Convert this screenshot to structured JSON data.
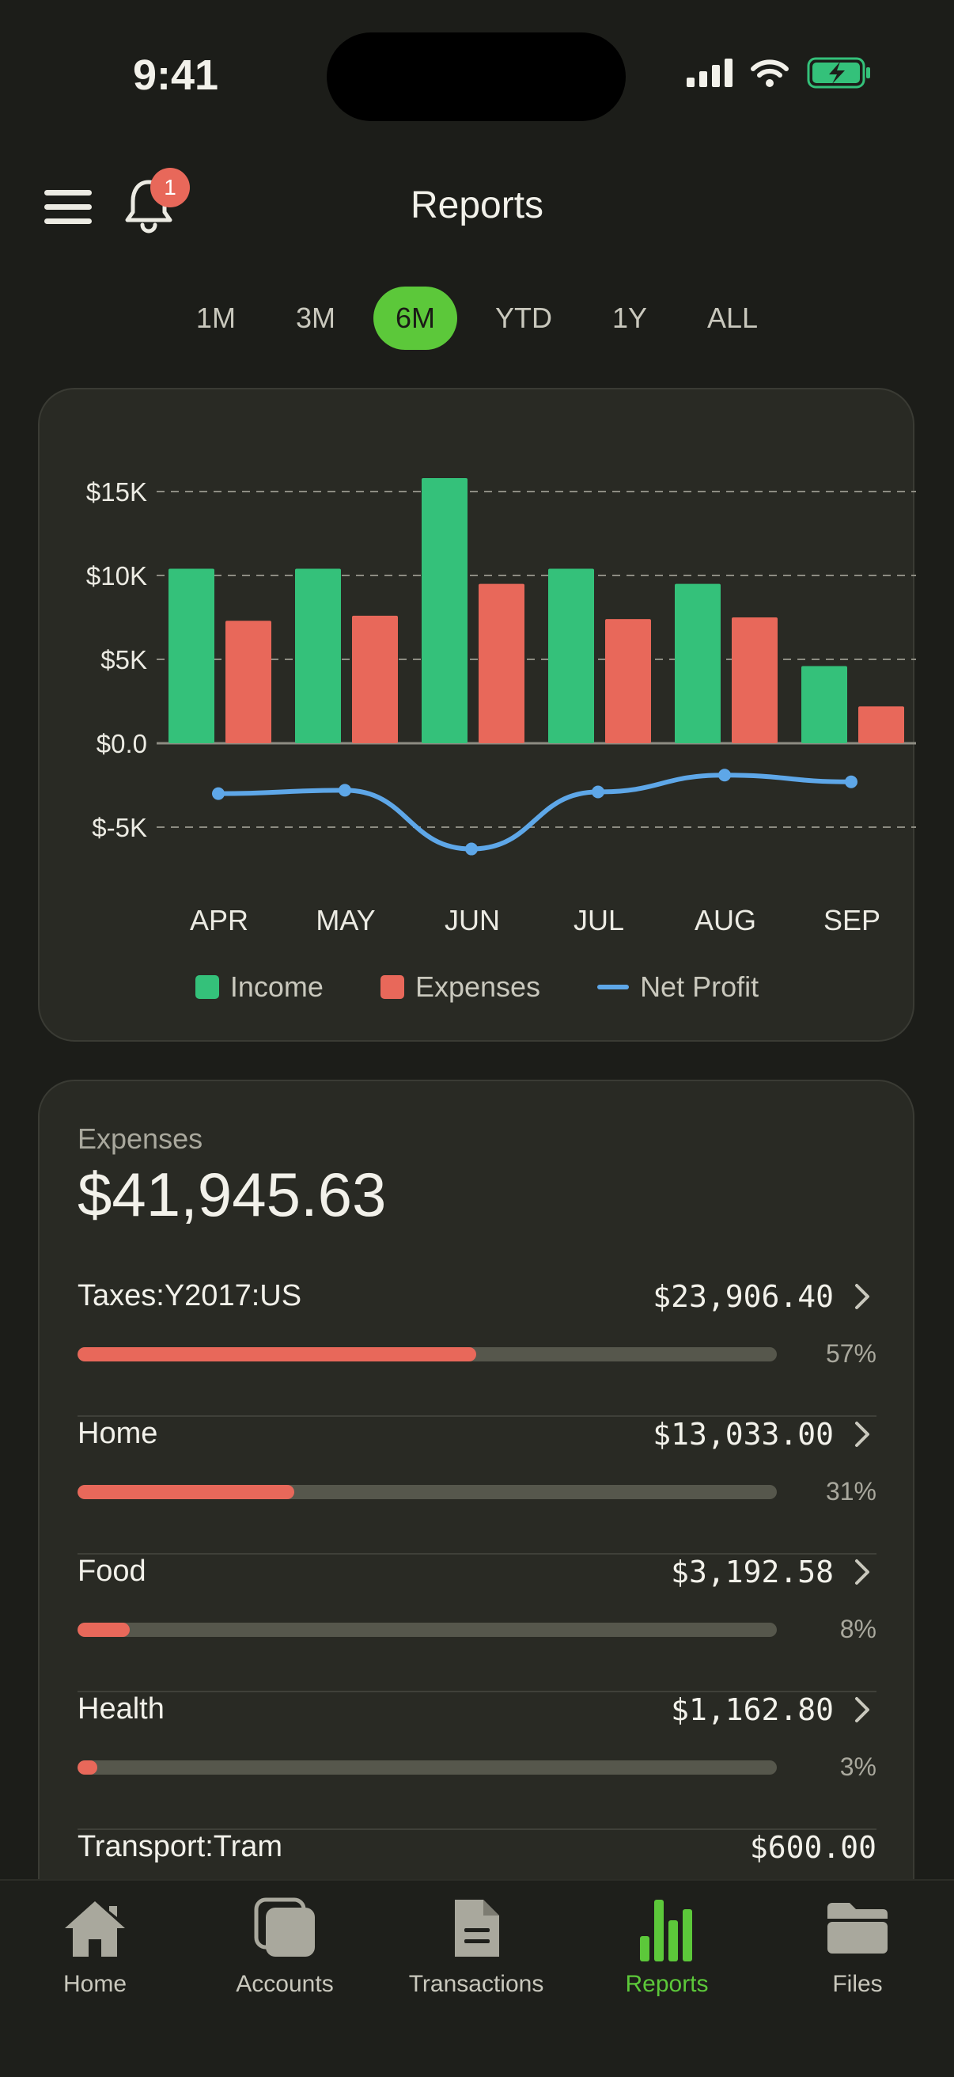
{
  "status_bar": {
    "time": "9:41"
  },
  "header": {
    "title": "Reports",
    "notification_count": "1"
  },
  "ranges": [
    "1M",
    "3M",
    "6M",
    "YTD",
    "1Y",
    "ALL"
  ],
  "selected_range": "6M",
  "colors": {
    "income": "#34c17a",
    "expenses": "#e8685a",
    "net_profit": "#5ea7e8",
    "accent": "#5cc83a"
  },
  "chart_data": {
    "type": "bar",
    "categories": [
      "APR",
      "MAY",
      "JUN",
      "JUL",
      "AUG",
      "SEP"
    ],
    "series": [
      {
        "name": "Income",
        "type": "bar",
        "values": [
          10400,
          10400,
          15800,
          10400,
          9500,
          4600
        ]
      },
      {
        "name": "Expenses",
        "type": "bar",
        "values": [
          7300,
          7600,
          9500,
          7400,
          7500,
          2200
        ]
      },
      {
        "name": "Net Profit",
        "type": "line",
        "values": [
          -3000,
          -2800,
          -6300,
          -2900,
          -1900,
          -2300
        ]
      }
    ],
    "y_ticks": [
      "$15K",
      "$10K",
      "$5K",
      "$0.0",
      "$-5K"
    ],
    "ylim": [
      -5000,
      15000
    ],
    "grid": true,
    "legend_position": "bottom"
  },
  "legend": {
    "income": "Income",
    "expenses": "Expenses",
    "net_profit": "Net Profit"
  },
  "expenses": {
    "label": "Expenses",
    "total": "$41,945.63",
    "rows": [
      {
        "name": "Taxes:Y2017:US",
        "amount": "$23,906.40",
        "percent": "57%",
        "share": 0.57
      },
      {
        "name": "Home",
        "amount": "$13,033.00",
        "percent": "31%",
        "share": 0.31
      },
      {
        "name": "Food",
        "amount": "$3,192.58",
        "percent": "8%",
        "share": 0.075
      },
      {
        "name": "Health",
        "amount": "$1,162.80",
        "percent": "3%",
        "share": 0.028
      },
      {
        "name": "Transport:Tram",
        "amount": "$600.00"
      }
    ]
  },
  "tabbar": {
    "home": "Home",
    "accounts": "Accounts",
    "transactions": "Transactions",
    "reports": "Reports",
    "files": "Files"
  }
}
